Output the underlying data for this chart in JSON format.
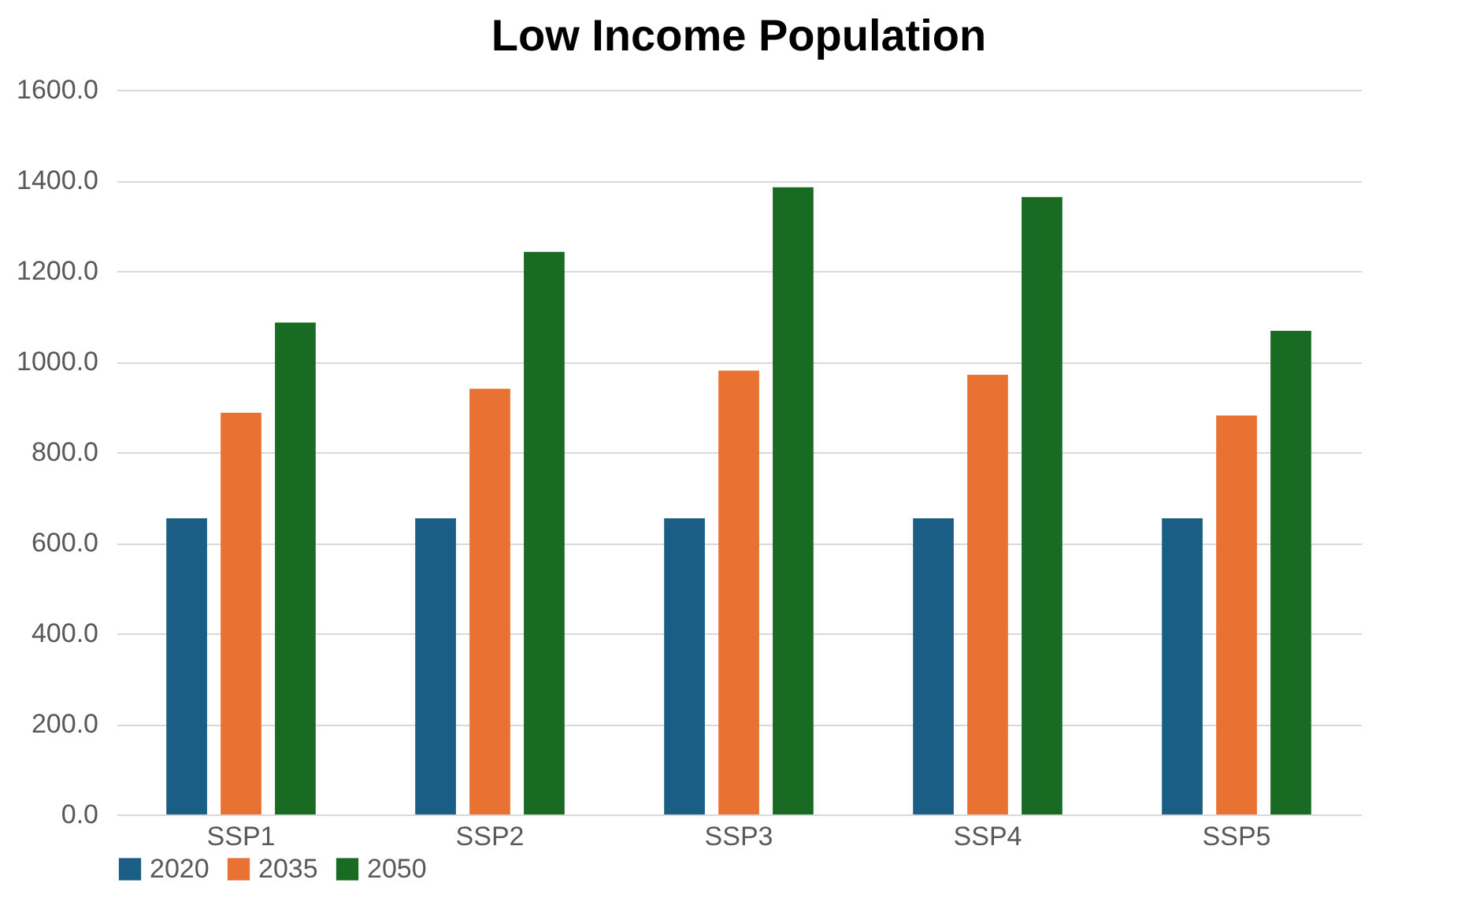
{
  "chart_data": {
    "type": "bar",
    "title": "Low Income Population",
    "categories": [
      "SSP1",
      "SSP2",
      "SSP3",
      "SSP4",
      "SSP5"
    ],
    "series": [
      {
        "name": "2020",
        "color": "#1a5e85",
        "values": [
          654,
          654,
          654,
          654,
          654
        ]
      },
      {
        "name": "2035",
        "color": "#e97132",
        "values": [
          887,
          940,
          980,
          971,
          881
        ]
      },
      {
        "name": "2050",
        "color": "#196b24",
        "values": [
          1086,
          1242,
          1385,
          1363,
          1068
        ]
      }
    ],
    "ylim": [
      0,
      1600
    ],
    "yticks": [
      {
        "value": 0,
        "label": "0.0"
      },
      {
        "value": 200,
        "label": "200.0"
      },
      {
        "value": 400,
        "label": "400.0"
      },
      {
        "value": 600,
        "label": "600.0"
      },
      {
        "value": 800,
        "label": "800.0"
      },
      {
        "value": 1000,
        "label": "1000.0"
      },
      {
        "value": 1200,
        "label": "1200.0"
      },
      {
        "value": 1400,
        "label": "1400.0"
      },
      {
        "value": 1600,
        "label": "1600.0"
      }
    ],
    "grid": "y",
    "legend": "bottom"
  }
}
